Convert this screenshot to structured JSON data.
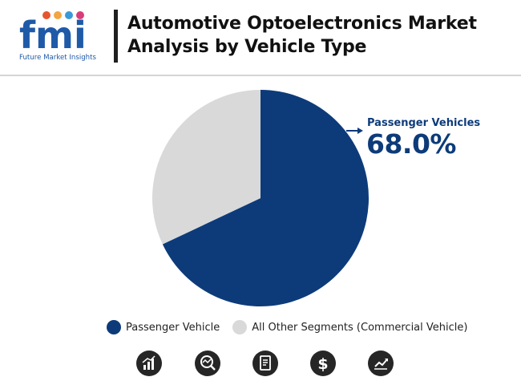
{
  "header": {
    "logo_text": "fmi",
    "logo_subtitle": "Future Market Insights",
    "title": "Automotive Optoelectronics Market Analysis by Vehicle Type"
  },
  "colors": {
    "primary": "#0d3b7a",
    "secondary": "#d9d9d9",
    "logo_blue": "#1e5aa8",
    "icon_dark": "#262626"
  },
  "chart_data": {
    "type": "pie",
    "title": "Automotive Optoelectronics Market Analysis by Vehicle Type",
    "slices": [
      {
        "name": "Passenger Vehicle",
        "value": 68.0,
        "color": "#0d3b7a"
      },
      {
        "name": "All Other Segments (Commercial Vehicle)",
        "value": 32.0,
        "color": "#d9d9d9"
      }
    ],
    "annotation": {
      "label": "Passenger Vehicles",
      "value": "68.0%"
    },
    "legend_position": "bottom"
  },
  "footer_icons": [
    "bar-chart-icon",
    "magnifier-chart-icon",
    "report-icon",
    "dollar-icon",
    "growth-chart-icon"
  ]
}
